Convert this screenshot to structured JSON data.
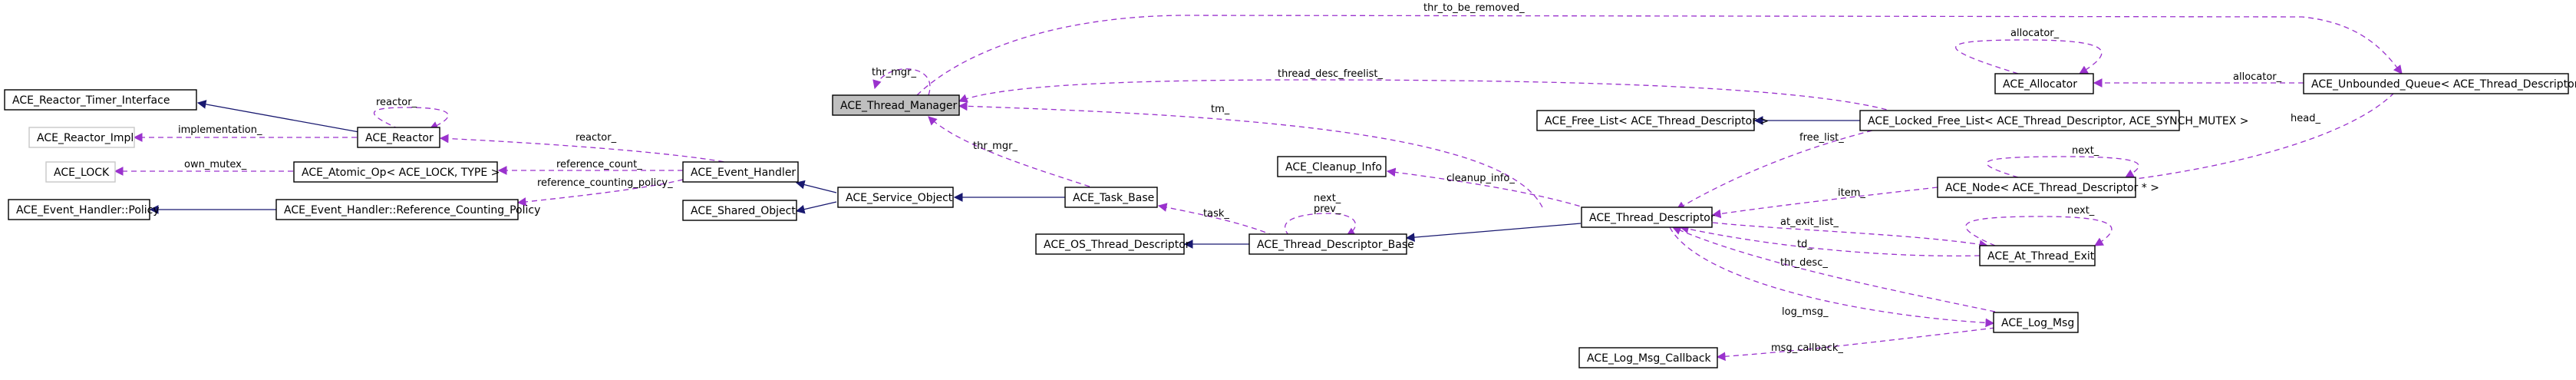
{
  "colors": {
    "inherit": "#191970",
    "usage": "#9a32cd",
    "highlight": "#bfbfbf"
  },
  "nodes": {
    "thread_manager": "ACE_Thread_Manager",
    "reactor_timer_interface": "ACE_Reactor_Timer_Interface",
    "reactor_impl": "ACE_Reactor_Impl",
    "reactor": "ACE_Reactor",
    "ace_lock": "ACE_LOCK",
    "atomic_op": "ACE_Atomic_Op< ACE_LOCK, TYPE >",
    "event_handler": "ACE_Event_Handler",
    "event_handler_policy": "ACE_Event_Handler::Policy",
    "reference_counting_policy": "ACE_Event_Handler::Reference_Counting_Policy",
    "service_object": "ACE_Service_Object",
    "shared_object": "ACE_Shared_Object",
    "task_base": "ACE_Task_Base",
    "os_thread_descriptor": "ACE_OS_Thread_Descriptor",
    "thread_descriptor_base": "ACE_Thread_Descriptor_Base",
    "cleanup_info": "ACE_Cleanup_Info",
    "thread_descriptor": "ACE_Thread_Descriptor",
    "free_list": "ACE_Free_List< ACE_Thread_Descriptor >",
    "locked_free_list": "ACE_Locked_Free_List< ACE_Thread_Descriptor, ACE_SYNCH_MUTEX >",
    "allocator": "ACE_Allocator",
    "unbounded_queue": "ACE_Unbounded_Queue< ACE_Thread_Descriptor * >",
    "node": "ACE_Node< ACE_Thread_Descriptor * >",
    "at_thread_exit": "ACE_At_Thread_Exit",
    "log_msg": "ACE_Log_Msg",
    "log_msg_callback": "ACE_Log_Msg_Callback"
  },
  "edge_labels": {
    "thr_to_be_removed": "thr_to_be_removed_",
    "thr_mgr_self": "thr_mgr_",
    "thread_desc_freelist": "thread_desc_freelist_",
    "allocator_self": "allocator_",
    "allocator_queue": "allocator_",
    "reactor_self": "reactor_",
    "implementation": "implementation_",
    "reactor_eh": "reactor_",
    "own_mutex": "own_mutex_",
    "reference_count": "reference_count_",
    "reference_counting_policy": "reference_counting_policy_",
    "tm": "tm_",
    "thr_mgr_task": "thr_mgr_",
    "head": "head_",
    "free_list": "free_list_",
    "next_node": "next_",
    "cleanup_info": "cleanup_info_",
    "item": "item_",
    "task": "task_",
    "next_prev": "next_\nprev_",
    "at_exit_list": "at_exit_list_",
    "next_exit": "next_",
    "td": "td_",
    "thr_desc": "thr_desc_",
    "log_msg": "log_msg_",
    "msg_callback": "msg_callback_"
  }
}
